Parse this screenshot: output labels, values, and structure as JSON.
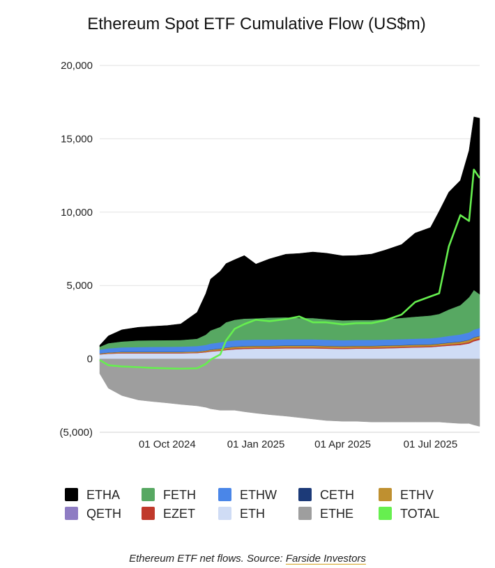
{
  "chart_data": {
    "type": "area",
    "title": "Ethereum Spot ETF Cumulative Flow (US$m)",
    "ylim": [
      -5000,
      20000
    ],
    "yticks": [
      20000,
      15000,
      10000,
      5000,
      0,
      -5000
    ],
    "ytick_labels": [
      "20,000",
      "15,000",
      "10,000",
      "5,000",
      "0",
      "(5,000)"
    ],
    "xlim": [
      "2024-07-23",
      "2025-08-21"
    ],
    "xticks": [
      "2024-10-01",
      "2025-01-01",
      "2025-04-01",
      "2025-07-01"
    ],
    "xtick_labels": [
      "01 Oct 2024",
      "01 Jan 2025",
      "01 Apr 2025",
      "01 Jul 2025"
    ],
    "grid": true,
    "legend_position": "bottom",
    "x": [
      "2024-07-23",
      "2024-08-01",
      "2024-08-15",
      "2024-09-01",
      "2024-09-15",
      "2024-10-01",
      "2024-10-15",
      "2024-11-01",
      "2024-11-10",
      "2024-11-15",
      "2024-11-25",
      "2024-12-01",
      "2024-12-10",
      "2024-12-20",
      "2025-01-01",
      "2025-01-15",
      "2025-02-01",
      "2025-02-15",
      "2025-03-01",
      "2025-03-15",
      "2025-04-01",
      "2025-04-15",
      "2025-05-01",
      "2025-05-15",
      "2025-06-01",
      "2025-06-15",
      "2025-07-01",
      "2025-07-10",
      "2025-07-20",
      "2025-08-01",
      "2025-08-10",
      "2025-08-15",
      "2025-08-21"
    ],
    "stacked_positive": [
      {
        "name": "ETH",
        "color": "#cfdcf5",
        "values": [
          300,
          350,
          380,
          380,
          380,
          380,
          380,
          400,
          450,
          500,
          550,
          600,
          650,
          680,
          700,
          700,
          720,
          720,
          720,
          700,
          680,
          700,
          700,
          720,
          750,
          780,
          800,
          850,
          900,
          950,
          1050,
          1200,
          1300
        ]
      },
      {
        "name": "QETH",
        "color": "#8e7cc3",
        "values": [
          5,
          5,
          5,
          5,
          5,
          5,
          5,
          5,
          5,
          5,
          5,
          5,
          5,
          5,
          5,
          5,
          5,
          5,
          5,
          5,
          5,
          5,
          5,
          5,
          5,
          5,
          5,
          5,
          5,
          5,
          5,
          5,
          5
        ]
      },
      {
        "name": "EZET",
        "color": "#c0392b",
        "values": [
          20,
          25,
          30,
          30,
          30,
          30,
          30,
          30,
          35,
          40,
          45,
          50,
          60,
          60,
          60,
          60,
          60,
          60,
          60,
          60,
          60,
          60,
          60,
          60,
          60,
          60,
          60,
          60,
          70,
          80,
          90,
          100,
          100
        ]
      },
      {
        "name": "ETHV",
        "color": "#bf9030",
        "values": [
          40,
          50,
          60,
          60,
          60,
          60,
          60,
          60,
          70,
          80,
          90,
          100,
          110,
          110,
          110,
          110,
          110,
          110,
          110,
          110,
          110,
          110,
          110,
          110,
          110,
          110,
          110,
          110,
          120,
          130,
          140,
          150,
          150
        ]
      },
      {
        "name": "CETH",
        "color": "#1c3a78",
        "values": [
          10,
          10,
          10,
          10,
          10,
          10,
          10,
          10,
          10,
          15,
          20,
          20,
          20,
          20,
          20,
          20,
          20,
          20,
          20,
          20,
          20,
          20,
          20,
          20,
          20,
          20,
          20,
          20,
          20,
          20,
          20,
          20,
          20
        ]
      },
      {
        "name": "ETHW",
        "color": "#4a86e8",
        "values": [
          250,
          280,
          300,
          320,
          330,
          340,
          350,
          370,
          380,
          400,
          420,
          420,
          420,
          420,
          420,
          420,
          420,
          420,
          420,
          410,
          400,
          400,
          400,
          400,
          400,
          400,
          410,
          420,
          450,
          480,
          500,
          520,
          530
        ]
      },
      {
        "name": "FETH",
        "color": "#57a862",
        "values": [
          200,
          350,
          400,
          450,
          450,
          450,
          450,
          500,
          700,
          900,
          1050,
          1300,
          1400,
          1450,
          1450,
          1500,
          1500,
          1450,
          1450,
          1400,
          1350,
          1350,
          1350,
          1400,
          1450,
          1500,
          1550,
          1600,
          1800,
          2000,
          2400,
          2700,
          2300
        ]
      },
      {
        "name": "ETHA",
        "color": "#000000",
        "values": [
          100,
          500,
          800,
          900,
          950,
          1000,
          1100,
          1800,
          2800,
          3500,
          3800,
          4000,
          4100,
          4300,
          3700,
          4000,
          4300,
          4400,
          4500,
          4500,
          4400,
          4400,
          4500,
          4700,
          5000,
          5700,
          6000,
          7000,
          8000,
          8500,
          10000,
          11800,
          12000
        ]
      }
    ],
    "stacked_negative": [
      {
        "name": "ETHE",
        "color": "#9e9e9e",
        "values": [
          -1000,
          -2000,
          -2500,
          -2800,
          -2900,
          -3000,
          -3100,
          -3200,
          -3300,
          -3400,
          -3500,
          -3500,
          -3500,
          -3600,
          -3700,
          -3800,
          -3900,
          -4000,
          -4100,
          -4200,
          -4250,
          -4250,
          -4300,
          -4300,
          -4300,
          -4300,
          -4300,
          -4300,
          -4350,
          -4400,
          -4400,
          -4500,
          -4600
        ]
      }
    ],
    "line": {
      "name": "TOTAL",
      "color": "#66ef4f",
      "values": [
        -75,
        -430,
        -515,
        -565,
        -615,
        -645,
        -665,
        -640,
        -350,
        -50,
        300,
        1250,
        2050,
        2370,
        2670,
        2570,
        2710,
        2890,
        2490,
        2490,
        2350,
        2430,
        2440,
        2630,
        3020,
        3870,
        4255,
        4470,
        7660,
        9800,
        9400,
        12900,
        12330
      ]
    },
    "legend": [
      {
        "name": "ETHA",
        "color": "#000000"
      },
      {
        "name": "FETH",
        "color": "#57a862"
      },
      {
        "name": "ETHW",
        "color": "#4a86e8"
      },
      {
        "name": "CETH",
        "color": "#1c3a78"
      },
      {
        "name": "ETHV",
        "color": "#bf9030"
      },
      {
        "name": "QETH",
        "color": "#8e7cc3"
      },
      {
        "name": "EZET",
        "color": "#c0392b"
      },
      {
        "name": "ETH",
        "color": "#cfdcf5"
      },
      {
        "name": "ETHE",
        "color": "#9e9e9e"
      },
      {
        "name": "TOTAL",
        "color": "#66ef4f"
      }
    ]
  },
  "caption": {
    "text": "Ethereum ETF net flows. Source: ",
    "link_text": "Farside Investors"
  }
}
